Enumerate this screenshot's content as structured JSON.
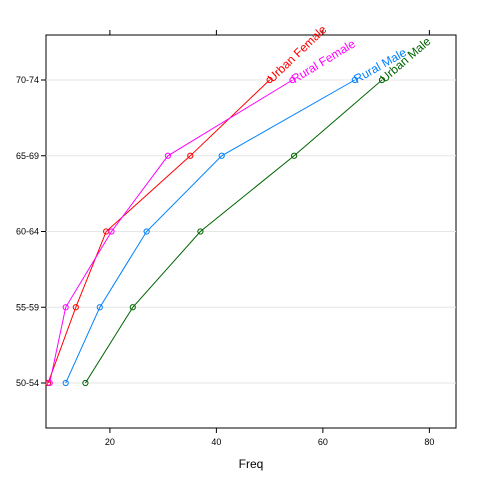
{
  "chart_data": {
    "type": "line",
    "xlabel": "Freq",
    "ylabel": "",
    "xlim": [
      8,
      85
    ],
    "categories": [
      "50-54",
      "55-59",
      "60-64",
      "65-69",
      "70-74"
    ],
    "xticks": [
      20,
      40,
      60,
      80
    ],
    "grid": "horizontal",
    "series": [
      {
        "name": "Urban Female",
        "color": "#ff0000",
        "values": [
          8.4,
          13.6,
          19.3,
          35.1,
          50.0
        ]
      },
      {
        "name": "Rural Female",
        "color": "#ff00ff",
        "values": [
          8.7,
          11.7,
          20.3,
          30.9,
          54.3
        ]
      },
      {
        "name": "Rural Male",
        "color": "#0080ff",
        "values": [
          11.7,
          18.1,
          26.9,
          41.0,
          66.0
        ]
      },
      {
        "name": "Urban Male",
        "color": "#006400",
        "values": [
          15.4,
          24.3,
          37.0,
          54.6,
          71.1
        ]
      }
    ]
  }
}
